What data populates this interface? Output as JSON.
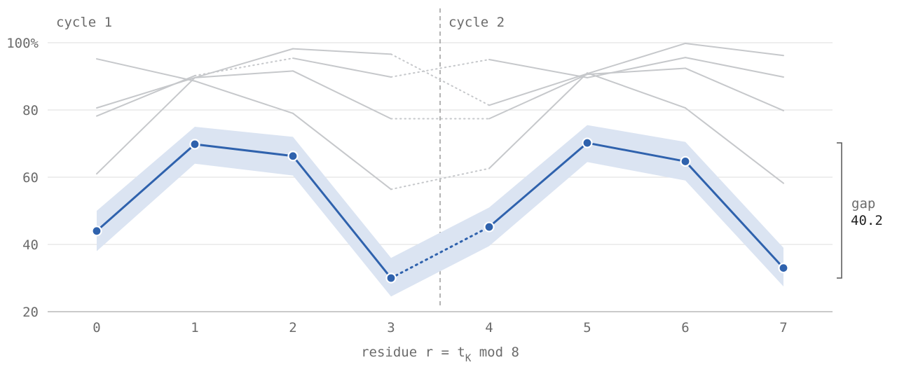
{
  "chart_data": {
    "type": "line",
    "x": [
      0,
      1,
      2,
      3,
      4,
      5,
      6,
      7
    ],
    "x_tick_labels": [
      "0",
      "1",
      "2",
      "3",
      "4",
      "5",
      "6",
      "7"
    ],
    "y_tick_labels": [
      "20",
      "40",
      "60",
      "80",
      "100%"
    ],
    "y_ticks": [
      20,
      40,
      60,
      80,
      100
    ],
    "ylim": [
      20,
      100
    ],
    "xlim": [
      -0.5,
      7.5
    ],
    "grid": "horizontal",
    "xlabel": {
      "prefix": "residue r = t",
      "subscript": "K",
      "suffix": " mod 8"
    },
    "cycle_divider_x": 3.5,
    "cycle_labels": [
      "cycle 1",
      "cycle 2"
    ],
    "highlight_series": {
      "color": "#2f62ad",
      "band_color": "#dbe4f2",
      "values": [
        44,
        69.8,
        66.3,
        30,
        45.2,
        70.2,
        64.7,
        33
      ],
      "band_upper": [
        50,
        75,
        72,
        36,
        51,
        75.5,
        70.5,
        39
      ],
      "band_lower": [
        38,
        64,
        60.5,
        24.5,
        39.5,
        64.5,
        59,
        27.5
      ],
      "dotted_segments": [
        [
          3,
          4
        ]
      ]
    },
    "background_series": {
      "color": "#c6c8cb",
      "lines": [
        {
          "values": [
            95.2,
            88.6,
            79,
            56.4,
            62.6,
            91,
            80.6,
            58.2
          ],
          "dotted_segments": [
            [
              3,
              4
            ]
          ]
        },
        {
          "values": [
            80.6,
            89.6,
            91.6,
            77.4,
            77.4,
            90.6,
            92.4,
            79.8
          ],
          "dotted_segments": [
            [
              3,
              4
            ]
          ]
        },
        {
          "values": [
            78.2,
            90.2,
            95.4,
            89.8,
            95,
            89.6,
            95.6,
            89.8
          ],
          "dotted_segments": [
            [
              1,
              2
            ],
            [
              3,
              4
            ]
          ]
        },
        {
          "values": [
            61,
            89.6,
            98.2,
            96.6,
            81.4,
            90.8,
            99.8,
            96.2
          ],
          "dotted_segments": [
            [
              3,
              4
            ]
          ]
        }
      ]
    },
    "gap_annotation": {
      "label": "gap",
      "value": "40.2",
      "from": 70.2,
      "to": 30
    }
  }
}
